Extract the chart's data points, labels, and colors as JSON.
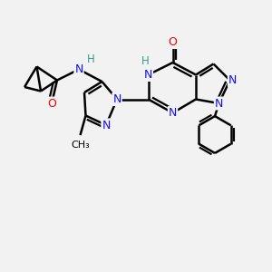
{
  "background_color": "#f2f2f2",
  "bond_color": "#000000",
  "bond_width": 1.8,
  "atom_colors": {
    "N": "#1010ee",
    "O": "#ee0000",
    "C": "#000000",
    "H": "#3a9a8a"
  },
  "font_size": 9.0,
  "fig_size": [
    3.0,
    3.0
  ]
}
